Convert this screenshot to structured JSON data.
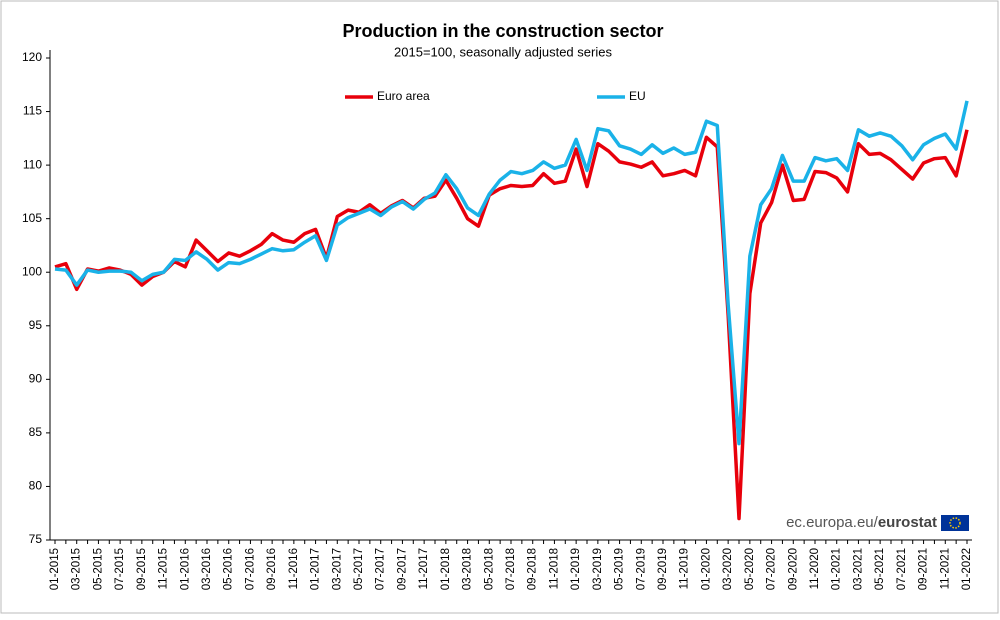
{
  "chart_data": {
    "type": "line",
    "title": "Production in the construction sector",
    "subtitle": "2015=100, seasonally adjusted series",
    "source_prefix": "ec.europa.eu/",
    "source_brand": "eurostat",
    "categories": [
      "01-2015",
      null,
      "03-2015",
      null,
      "05-2015",
      null,
      "07-2015",
      null,
      "09-2015",
      null,
      "11-2015",
      null,
      "01-2016",
      null,
      "03-2016",
      null,
      "05-2016",
      null,
      "07-2016",
      null,
      "09-2016",
      null,
      "11-2016",
      null,
      "01-2017",
      null,
      "03-2017",
      null,
      "05-2017",
      null,
      "07-2017",
      null,
      "09-2017",
      null,
      "11-2017",
      null,
      "01-2018",
      null,
      "03-2018",
      null,
      "05-2018",
      null,
      "07-2018",
      null,
      "09-2018",
      null,
      "11-2018",
      null,
      "01-2019",
      null,
      "03-2019",
      null,
      "05-2019",
      null,
      "07-2019",
      null,
      "09-2019",
      null,
      "11-2019",
      null,
      "01-2020",
      null,
      "03-2020",
      null,
      "05-2020",
      null,
      "07-2020",
      null,
      "09-2020",
      null,
      "11-2020",
      null,
      "01-2021",
      null,
      "03-2021",
      null,
      "05-2021",
      null,
      "07-2021",
      null,
      "09-2021",
      null,
      "11-2021",
      null,
      "01-2022"
    ],
    "series": [
      {
        "name": "Euro area",
        "color": "#e8000b",
        "values": [
          100.5,
          100.8,
          98.4,
          100.3,
          100.1,
          100.4,
          100.2,
          99.8,
          98.8,
          99.6,
          100.0,
          101.0,
          100.5,
          103.0,
          102.0,
          101.0,
          101.8,
          101.5,
          102.0,
          102.6,
          103.6,
          103.0,
          102.8,
          103.6,
          104.0,
          101.3,
          105.2,
          105.8,
          105.6,
          106.3,
          105.5,
          106.2,
          106.7,
          106.0,
          106.9,
          107.1,
          108.6,
          106.9,
          105.0,
          104.3,
          107.2,
          107.8,
          108.1,
          108.0,
          108.1,
          109.2,
          108.3,
          108.5,
          111.5,
          108.0,
          112.0,
          111.3,
          110.3,
          110.1,
          109.8,
          110.3,
          109.0,
          109.2,
          109.5,
          109.0,
          112.6,
          111.7,
          96.0,
          77.0,
          98.0,
          104.6,
          106.5,
          110.0,
          106.7,
          106.8,
          109.4,
          109.3,
          108.8,
          107.5,
          112.0,
          111.0,
          111.1,
          110.5,
          109.6,
          108.7,
          110.2,
          110.6,
          110.7,
          109.0,
          113.3
        ]
      },
      {
        "name": "EU",
        "color": "#1ab2e8",
        "values": [
          100.3,
          100.2,
          98.8,
          100.2,
          100.0,
          100.1,
          100.1,
          100.0,
          99.2,
          99.8,
          100.0,
          101.2,
          101.1,
          101.9,
          101.2,
          100.2,
          100.9,
          100.8,
          101.2,
          101.7,
          102.2,
          102.0,
          102.1,
          102.8,
          103.4,
          101.1,
          104.4,
          105.1,
          105.5,
          105.9,
          105.3,
          106.1,
          106.6,
          105.9,
          106.8,
          107.4,
          109.1,
          107.8,
          106.0,
          105.3,
          107.3,
          108.6,
          109.4,
          109.2,
          109.5,
          110.3,
          109.7,
          110.0,
          112.4,
          109.5,
          113.4,
          113.2,
          111.8,
          111.5,
          111.0,
          111.9,
          111.1,
          111.6,
          111.0,
          111.2,
          114.1,
          113.7,
          97.0,
          84.0,
          101.5,
          106.3,
          107.8,
          110.9,
          108.5,
          108.5,
          110.7,
          110.4,
          110.6,
          109.5,
          113.3,
          112.7,
          113.0,
          112.7,
          111.8,
          110.5,
          111.9,
          112.5,
          112.9,
          111.5,
          116.0
        ]
      }
    ],
    "ylim": [
      75,
      120
    ],
    "yticks": [
      75,
      80,
      85,
      90,
      95,
      100,
      105,
      110,
      115,
      120
    ]
  }
}
